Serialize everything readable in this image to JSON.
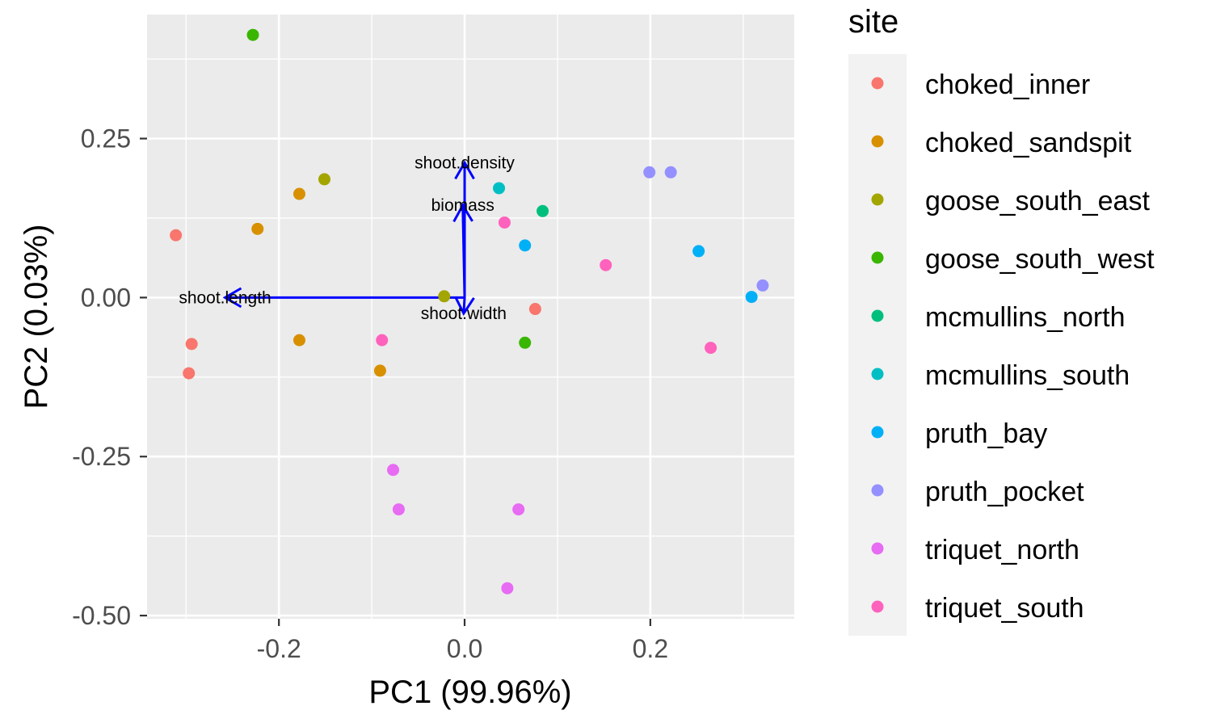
{
  "chart_data": {
    "type": "scatter",
    "title": "",
    "xlabel": "PC1 (99.96%)",
    "ylabel": "PC2 (0.03%)",
    "xlim": [
      -0.342,
      0.355
    ],
    "ylim": [
      -0.505,
      0.445
    ],
    "xticks": [
      -0.2,
      0.0,
      0.2
    ],
    "xtick_labels": [
      "-0.2",
      "0.0",
      "0.2"
    ],
    "yticks": [
      0.25,
      0.0,
      -0.25,
      -0.5
    ],
    "ytick_labels": [
      "0.25",
      "0.00",
      "-0.25",
      "-0.50"
    ],
    "grid": true,
    "legend": {
      "title": "site",
      "position": "right"
    },
    "series": [
      {
        "name": "choked_inner",
        "color": "#F8766D",
        "points": [
          [
            -0.311,
            0.098
          ],
          [
            -0.294,
            -0.073
          ],
          [
            -0.297,
            -0.119
          ],
          [
            0.076,
            -0.018
          ]
        ]
      },
      {
        "name": "choked_sandspit",
        "color": "#D89000",
        "points": [
          [
            -0.178,
            0.163
          ],
          [
            -0.223,
            0.108
          ],
          [
            -0.178,
            -0.067
          ],
          [
            -0.091,
            -0.115
          ]
        ]
      },
      {
        "name": "goose_south_east",
        "color": "#A3A500",
        "points": [
          [
            -0.151,
            0.186
          ],
          [
            -0.022,
            0.002
          ]
        ]
      },
      {
        "name": "goose_south_west",
        "color": "#39B600",
        "points": [
          [
            -0.228,
            0.413
          ],
          [
            0.065,
            -0.071
          ]
        ]
      },
      {
        "name": "mcmullins_north",
        "color": "#00BF7D",
        "points": [
          [
            0.084,
            0.136
          ]
        ]
      },
      {
        "name": "mcmullins_south",
        "color": "#00BFC4",
        "points": [
          [
            0.037,
            0.172
          ]
        ]
      },
      {
        "name": "pruth_bay",
        "color": "#00B0F6",
        "points": [
          [
            0.065,
            0.082
          ],
          [
            0.252,
            0.073
          ],
          [
            0.309,
            0.001
          ]
        ]
      },
      {
        "name": "pruth_pocket",
        "color": "#9590FF",
        "points": [
          [
            0.199,
            0.197
          ],
          [
            0.222,
            0.197
          ],
          [
            0.321,
            0.019
          ]
        ]
      },
      {
        "name": "triquet_north",
        "color": "#E76BF3",
        "points": [
          [
            -0.077,
            -0.271
          ],
          [
            -0.071,
            -0.333
          ],
          [
            0.058,
            -0.333
          ],
          [
            0.046,
            -0.457
          ]
        ]
      },
      {
        "name": "triquet_south",
        "color": "#FF62BC",
        "points": [
          [
            0.043,
            0.118
          ],
          [
            0.152,
            0.051
          ],
          [
            -0.089,
            -0.067
          ],
          [
            0.265,
            -0.079
          ]
        ]
      }
    ],
    "loadings": {
      "color": "#0000FF",
      "arrows": [
        {
          "name": "shoot.density",
          "x": 0.0,
          "y": 0.212
        },
        {
          "name": "biomass",
          "x": -0.002,
          "y": 0.145
        },
        {
          "name": "shoot.length",
          "x": -0.258,
          "y": 0.0
        },
        {
          "name": "shoot.width",
          "x": -0.001,
          "y": -0.025
        }
      ]
    }
  }
}
